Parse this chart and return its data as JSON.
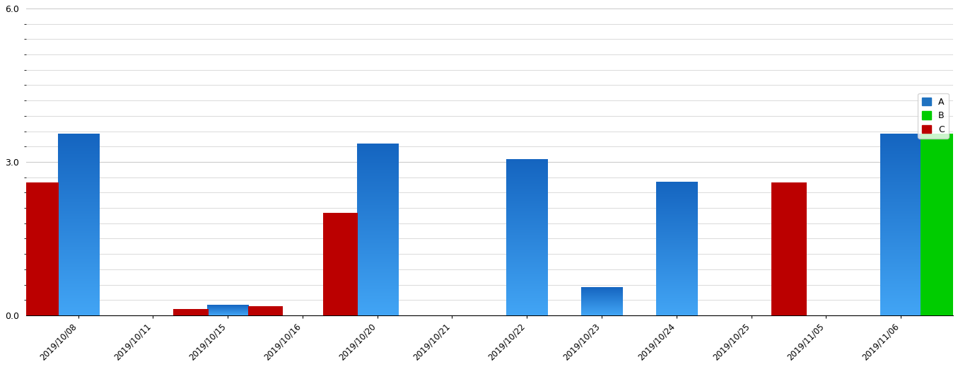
{
  "dates": [
    "2019/10/08",
    "2019/10/11",
    "2019/10/15",
    "2019/10/16",
    "2019/10/20",
    "2019/10/21",
    "2019/10/22",
    "2019/10/23",
    "2019/10/24",
    "2019/10/25",
    "2019/11/05",
    "2019/11/06"
  ],
  "series_A": [
    3.55,
    0,
    0.2,
    0,
    3.35,
    0,
    3.05,
    0.55,
    2.6,
    0,
    0,
    3.55
  ],
  "series_B": [
    0,
    0,
    0,
    0,
    0,
    0,
    0,
    0,
    0,
    0,
    0,
    3.55
  ],
  "series_C": [
    2.6,
    0,
    0.12,
    0.18,
    2.0,
    0,
    0,
    0,
    0,
    0,
    2.6,
    0
  ],
  "color_A_top": "#1565C0",
  "color_A_bottom": "#42A5F5",
  "color_B": "#00CC00",
  "color_C": "#BB0000",
  "ylim": [
    0,
    6.0
  ],
  "ytick_major": [
    0.0,
    3.0,
    6.0
  ],
  "ytick_minor_count": 10,
  "legend_labels": [
    "A",
    "B",
    "C"
  ],
  "legend_colors": [
    "#1F72C0",
    "#00CC00",
    "#BB0000"
  ],
  "background_color": "#FFFFFF",
  "grid_color": "#CCCCCC",
  "bar_width": 0.55
}
